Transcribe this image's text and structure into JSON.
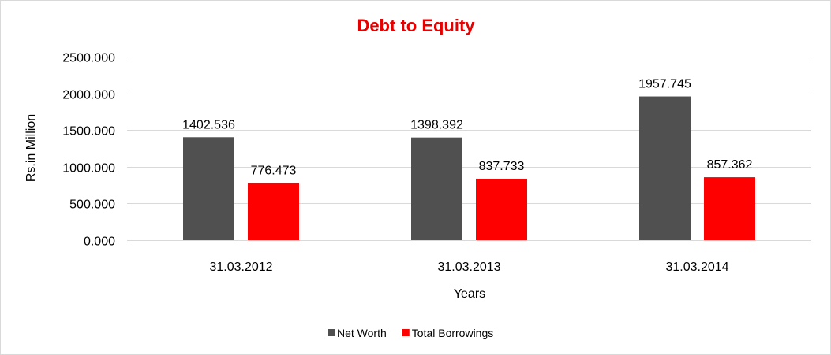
{
  "chart_data": {
    "type": "bar",
    "title": "Debt to Equity",
    "xlabel": "Years",
    "ylabel": "Rs.in Million",
    "categories": [
      "31.03.2012",
      "31.03.2013",
      "31.03.2014"
    ],
    "series": [
      {
        "name": "Net Worth",
        "color": "#505050",
        "values": [
          1402.536,
          1398.392,
          1957.745
        ],
        "labels": [
          "1402.536",
          "1398.392",
          "1957.745"
        ]
      },
      {
        "name": "Total Borrowings",
        "color": "#ff0000",
        "values": [
          776.473,
          837.733,
          857.362
        ],
        "labels": [
          "776.473",
          "837.733",
          "857.362"
        ]
      }
    ],
    "ylim": [
      0,
      2500
    ],
    "yticks": [
      0,
      500,
      1000,
      1500,
      2000,
      2500
    ],
    "ytick_labels": [
      "0.000",
      "500.000",
      "1000.000",
      "1500.000",
      "2000.000",
      "2500.000"
    ],
    "grid": true,
    "legend_position": "bottom",
    "title_color": "#e60000"
  }
}
